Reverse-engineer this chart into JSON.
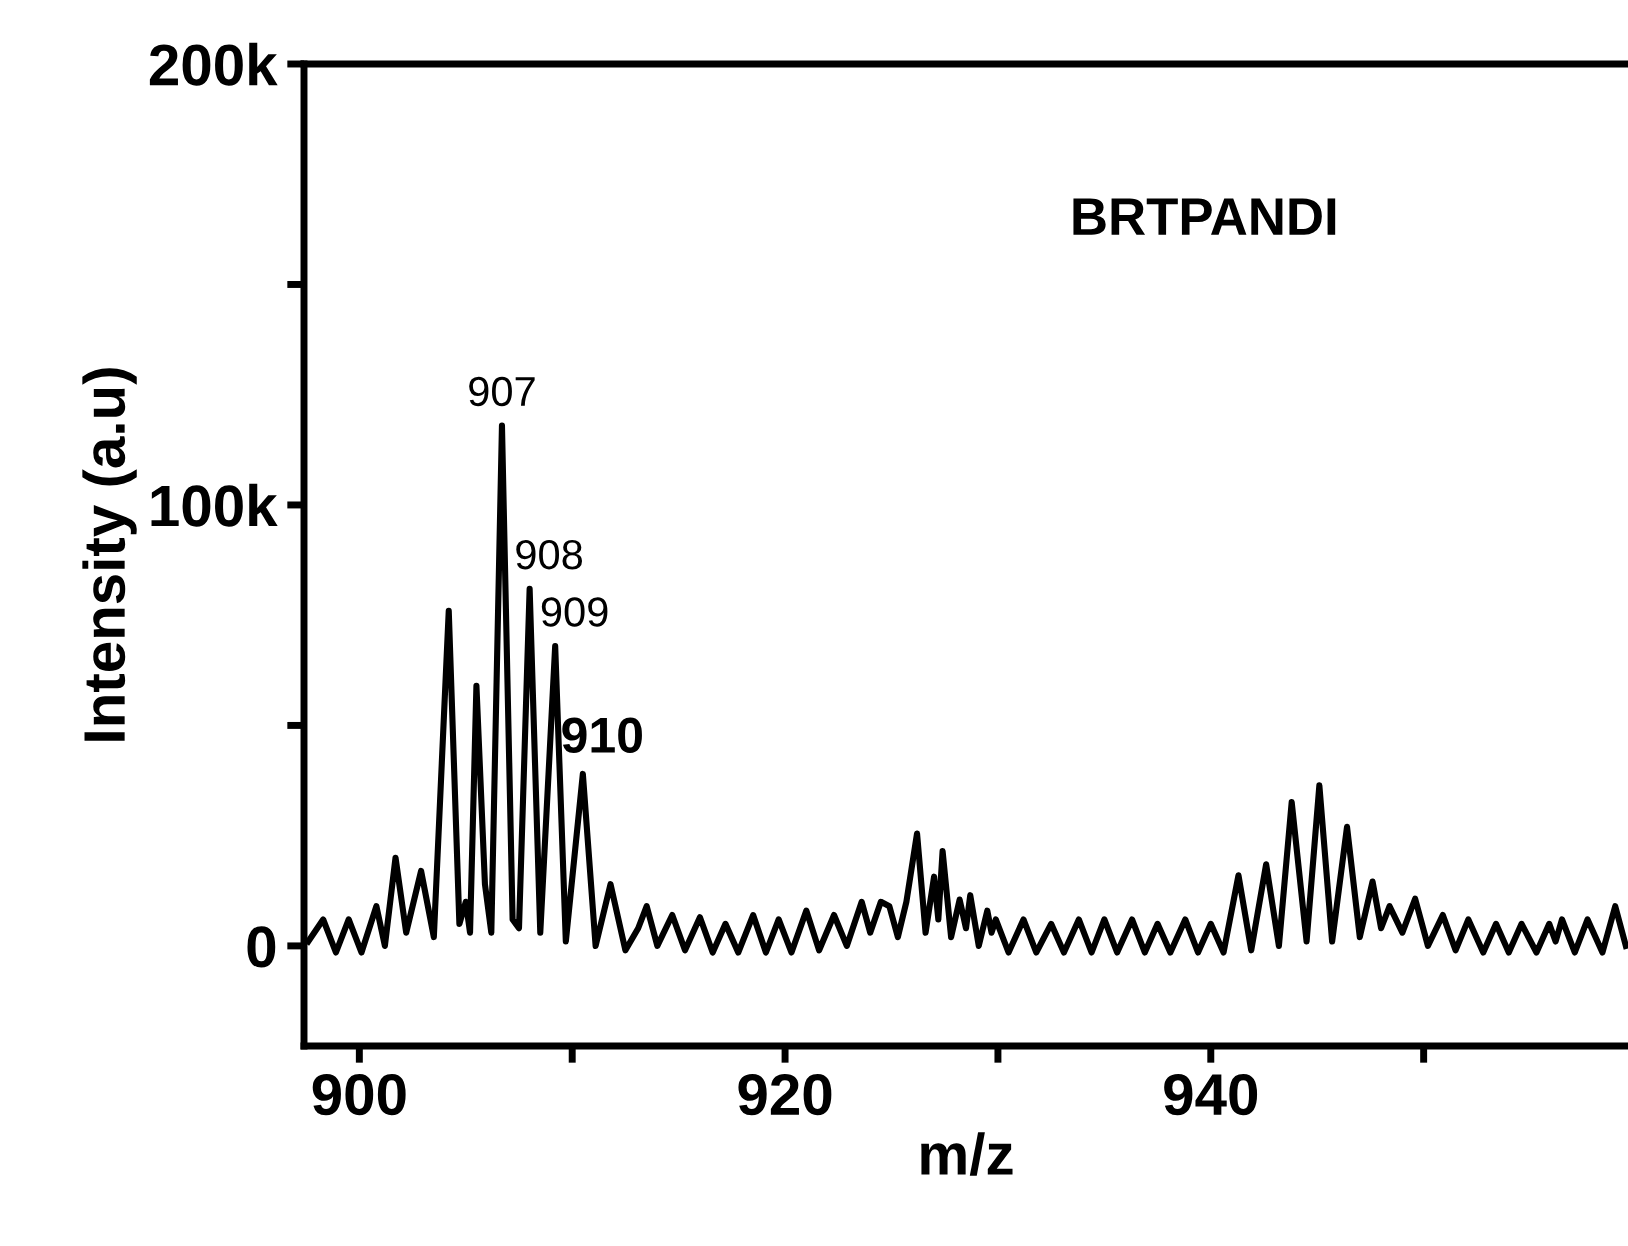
{
  "chart_data": {
    "type": "line",
    "xlabel": "m/z",
    "ylabel": "Intensity (a.u)",
    "xlim": [
      897.4,
      959.6
    ],
    "xticks": [
      900,
      {
        "value": 910,
        "label": null
      },
      920,
      {
        "value": 930,
        "label": null
      },
      940,
      {
        "value": 950,
        "label": null
      }
    ],
    "ylim": [
      -22700,
      200000
    ],
    "yticks": [
      0,
      {
        "value": 50000,
        "label": null
      },
      {
        "value": 100000,
        "label": "100k"
      },
      {
        "value": 150000,
        "label": null
      },
      {
        "value": 200000,
        "label": "200k"
      }
    ],
    "grid": false,
    "legend": false,
    "marker": "none",
    "line_style": "solid",
    "annotations": [
      "BRTPANDI",
      {
        "text": "907",
        "x": 906.7,
        "y": 118000
      },
      {
        "text": "908",
        "x": 908.0,
        "y": 81000
      },
      {
        "text": "909",
        "x": 909.2,
        "y": 68000
      },
      {
        "text": "910",
        "x": 910.5,
        "y": 39000
      }
    ],
    "series": [
      {
        "color": "#000000",
        "x": [
          897.6,
          898.3,
          898.9,
          899.5,
          900.1,
          900.8,
          901.2,
          901.7,
          902.2,
          902.9,
          903.5,
          904.2,
          904.7,
          905.0,
          905.2,
          905.5,
          905.9,
          906.2,
          906.7,
          907.2,
          907.5,
          908.0,
          908.5,
          909.2,
          909.7,
          910.5,
          911.1,
          911.8,
          912.5,
          913.1,
          913.5,
          914.0,
          914.7,
          915.3,
          916.0,
          916.6,
          917.2,
          917.8,
          918.5,
          919.1,
          919.7,
          920.3,
          921.0,
          921.6,
          922.3,
          922.9,
          923.6,
          924.0,
          924.5,
          924.9,
          925.3,
          925.7,
          926.2,
          926.6,
          927.0,
          927.2,
          927.4,
          927.8,
          928.2,
          928.5,
          928.7,
          929.1,
          929.5,
          929.7,
          929.9,
          930.5,
          931.2,
          931.8,
          932.5,
          933.1,
          933.8,
          934.4,
          935.0,
          935.6,
          936.3,
          936.9,
          937.5,
          938.1,
          938.8,
          939.4,
          940.0,
          940.6,
          941.3,
          941.9,
          942.6,
          943.2,
          943.8,
          944.5,
          945.1,
          945.7,
          946.4,
          947.0,
          947.6,
          948.0,
          948.4,
          949.0,
          949.6,
          950.2,
          950.9,
          951.5,
          952.1,
          952.8,
          953.4,
          954.0,
          954.6,
          955.3,
          955.9,
          956.2,
          956.5,
          957.1,
          957.7,
          958.4,
          959.0,
          959.5
        ],
        "values": [
          1000,
          6000,
          -1500,
          6000,
          -1500,
          9000,
          0,
          20000,
          3000,
          17000,
          2000,
          76000,
          5000,
          10000,
          3000,
          59000,
          14000,
          3000,
          118000,
          6000,
          4000,
          81000,
          3000,
          68000,
          1000,
          39000,
          0,
          14000,
          -1000,
          4000,
          9000,
          0,
          7000,
          -1000,
          6500,
          -1500,
          5000,
          -1500,
          7000,
          -1500,
          6000,
          -1500,
          8000,
          -1000,
          7000,
          0,
          10000,
          3000,
          10000,
          9000,
          2000,
          10000,
          25500,
          3000,
          15700,
          6000,
          21500,
          2000,
          10500,
          4000,
          11500,
          0,
          8000,
          3000,
          6000,
          -1500,
          6000,
          -1500,
          5000,
          -1500,
          6000,
          -1500,
          6000,
          -1500,
          6000,
          -1500,
          5000,
          -1500,
          6000,
          -1500,
          5000,
          -1500,
          16000,
          -1000,
          18500,
          0,
          32600,
          1000,
          36400,
          1000,
          27000,
          2000,
          14600,
          4000,
          9000,
          3000,
          10700,
          0,
          7000,
          -1000,
          6000,
          -1500,
          5000,
          -1500,
          5000,
          -1500,
          5000,
          1000,
          6000,
          -1500,
          6000,
          -1500,
          9000,
          0
        ]
      }
    ]
  }
}
